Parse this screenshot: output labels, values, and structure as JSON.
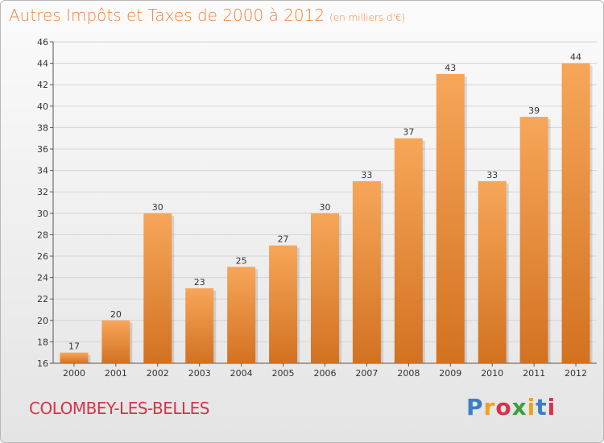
{
  "header": {
    "title": "Autres Impôts et Taxes de 2000 à 2012",
    "unit": "(en milliers d'€)"
  },
  "footer": {
    "commune": "COLOMBEY-LES-BELLES",
    "logo": "Proxiti"
  },
  "colors": {
    "title": "#f0823a",
    "commune": "#d6324a",
    "bar_light": "#f7a659",
    "bar_dark": "#d27221"
  },
  "chart_data": {
    "type": "bar",
    "categories": [
      "2000",
      "2001",
      "2002",
      "2003",
      "2004",
      "2005",
      "2006",
      "2007",
      "2008",
      "2009",
      "2010",
      "2011",
      "2012"
    ],
    "values": [
      17,
      20,
      30,
      23,
      25,
      27,
      30,
      33,
      37,
      43,
      33,
      39,
      44
    ],
    "title": "Autres Impôts et Taxes de 2000 à 2012",
    "subtitle": "(en milliers d'€)",
    "xlabel": "",
    "ylabel": "",
    "ylim": [
      16,
      46
    ],
    "yticks": [
      16,
      18,
      20,
      22,
      24,
      26,
      28,
      30,
      32,
      34,
      36,
      38,
      40,
      42,
      44,
      46
    ],
    "grid": true,
    "legend": "none"
  }
}
